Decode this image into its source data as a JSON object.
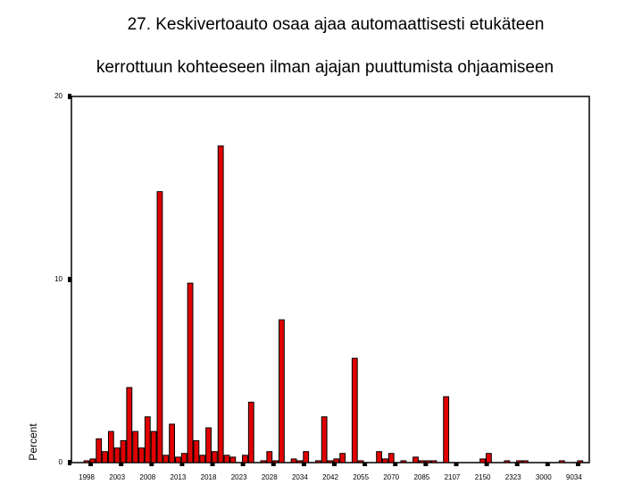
{
  "chart_data": {
    "type": "bar",
    "title": [
      "27. Keskivertoauto osaa ajaa automaattisesti etukäteen",
      "kerrottuun kohteeseen ilman ajajan puuttumista ohjaamiseen"
    ],
    "y_label": "Percent",
    "categories": [
      null,
      null,
      "1998",
      null,
      null,
      null,
      null,
      "2003",
      null,
      null,
      null,
      null,
      "2008",
      null,
      null,
      null,
      null,
      "2013",
      null,
      null,
      null,
      null,
      "2018",
      null,
      null,
      null,
      null,
      "2023",
      null,
      null,
      null,
      null,
      "2028",
      null,
      null,
      null,
      null,
      "2034",
      null,
      null,
      null,
      null,
      "2042",
      null,
      null,
      null,
      null,
      "2055",
      null,
      null,
      null,
      null,
      "2070",
      null,
      null,
      null,
      null,
      "2085",
      null,
      null,
      null,
      null,
      "2107",
      null,
      null,
      null,
      null,
      "2150",
      null,
      null,
      null,
      null,
      "2323",
      null,
      null,
      null,
      null,
      "3000",
      null,
      null,
      null,
      null,
      "9034",
      null,
      null
    ],
    "values": [
      0,
      0,
      0.1,
      0.2,
      1.3,
      0.6,
      1.7,
      0.8,
      1.2,
      4.1,
      1.7,
      0.8,
      2.5,
      1.7,
      14.8,
      0.4,
      2.1,
      0.3,
      0.5,
      9.8,
      1.2,
      0.4,
      1.9,
      0.6,
      17.3,
      0.4,
      0.3,
      0,
      0.4,
      3.3,
      0,
      0.1,
      0.6,
      0.1,
      7.8,
      0,
      0.2,
      0.1,
      0.6,
      0,
      0.1,
      2.5,
      0.1,
      0.2,
      0.5,
      0,
      5.7,
      0.1,
      0,
      0,
      0.6,
      0.2,
      0.5,
      0,
      0.1,
      0,
      0.3,
      0.1,
      0.1,
      0.1,
      0,
      3.6,
      0,
      0,
      0,
      0,
      0,
      0.2,
      0.5,
      0,
      0,
      0.1,
      0,
      0.1,
      0.1,
      0,
      0,
      0,
      0,
      0,
      0.1,
      0,
      0,
      0.1,
      0
    ],
    "color": "#e00000",
    "ylim": [
      0,
      20
    ],
    "yticks": [
      0,
      10,
      20
    ]
  }
}
